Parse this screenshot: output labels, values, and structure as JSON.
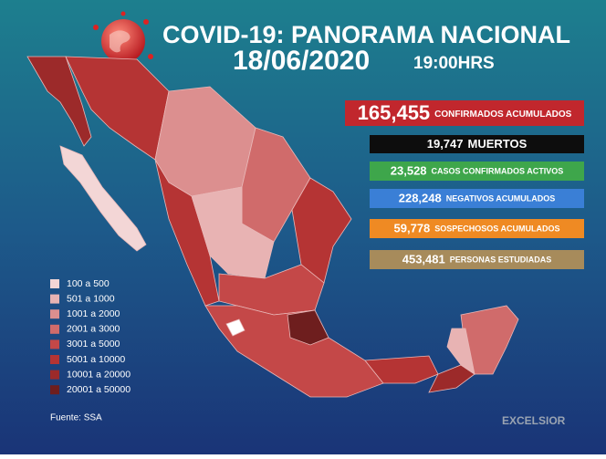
{
  "header": {
    "title": "COVID-19: PANORAMA NACIONAL",
    "date": "18/06/2020",
    "time": "19:00HRS"
  },
  "stats": [
    {
      "value": "165,455",
      "label": "CONFIRMADOS ACUMULADOS",
      "color": "#c1272d"
    },
    {
      "value": "19,747",
      "label": "MUERTOS",
      "color": "#0d0d0d"
    },
    {
      "value": "23,528",
      "label": "CASOS CONFIRMADOS ACTIVOS",
      "color": "#3ea64b"
    },
    {
      "value": "228,248",
      "label": "NEGATIVOS ACUMULADOS",
      "color": "#3a7fd6"
    },
    {
      "value": "59,778",
      "label": "SOSPECHOSOS ACUMULADOS",
      "color": "#ef8a23"
    },
    {
      "value": "453,481",
      "label": "PERSONAS ESTUDIADAS",
      "color": "#a78b5b"
    }
  ],
  "legend": [
    {
      "label": "100 a 500",
      "color": "#f3d6d6"
    },
    {
      "label": "501 a 1000",
      "color": "#e8b3b3"
    },
    {
      "label": "1001 a 2000",
      "color": "#dc8f8f"
    },
    {
      "label": "2001 a 3000",
      "color": "#d06b6b"
    },
    {
      "label": "3001 a 5000",
      "color": "#c44848"
    },
    {
      "label": "5001 a 10000",
      "color": "#b53434"
    },
    {
      "label": "10001 a 20000",
      "color": "#9c2a2a"
    },
    {
      "label": "20001 a 50000",
      "color": "#6e1e1e"
    }
  ],
  "source": "Fuente: SSA",
  "brand": "EXCELSIOR"
}
